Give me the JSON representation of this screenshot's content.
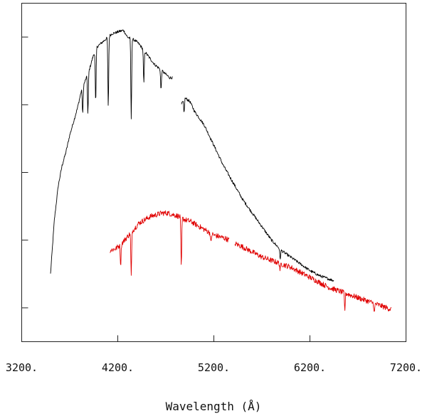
{
  "chart_data": {
    "type": "line",
    "title": "",
    "xlabel": "Wavelength (Å)",
    "ylabel": "",
    "xlim": [
      3200,
      7200
    ],
    "ylim": [
      0,
      1
    ],
    "x_ticks": [
      3200,
      4200,
      5200,
      6200,
      7200
    ],
    "x_tick_labels": [
      "3200.",
      "4200.",
      "5200.",
      "6200.",
      "7200."
    ],
    "y_ticks": [
      0.1,
      0.3,
      0.5,
      0.7,
      0.9
    ],
    "grid": false,
    "legend": "none",
    "series": [
      {
        "color": "#000000",
        "segments": [
          {
            "x": [
              3500,
              3540,
              3580,
              3620,
              3660,
              3700,
              3740,
              3780,
              3820,
              3860,
              3900,
              3940,
              3980,
              4020,
              4060,
              4100,
              4140,
              4180,
              4220,
              4260,
              4300,
              4340,
              4380,
              4420,
              4460,
              4500,
              4540,
              4580,
              4620,
              4660,
              4700,
              4740,
              4770
            ],
            "y": [
              0.2,
              0.36,
              0.46,
              0.52,
              0.56,
              0.61,
              0.65,
              0.69,
              0.74,
              0.77,
              0.8,
              0.84,
              0.87,
              0.88,
              0.89,
              0.9,
              0.91,
              0.913,
              0.917,
              0.92,
              0.9,
              0.895,
              0.89,
              0.88,
              0.865,
              0.85,
              0.835,
              0.82,
              0.81,
              0.8,
              0.79,
              0.78,
              0.78
            ],
            "dips": [
              {
                "x": 3835,
                "depth": 0.08
              },
              {
                "x": 3889,
                "depth": 0.12
              },
              {
                "x": 3970,
                "depth": 0.16
              },
              {
                "x": 4101,
                "depth": 0.21
              },
              {
                "x": 4340,
                "depth": 0.24
              },
              {
                "x": 4471,
                "depth": 0.1
              },
              {
                "x": 4650,
                "depth": 0.06
              }
            ]
          },
          {
            "x": [
              4860,
              4900,
              4950,
              5000,
              5100,
              5200,
              5300,
              5400,
              5500,
              5600,
              5700,
              5800,
              5900,
              6000,
              6100,
              6200,
              6300,
              6400,
              6450
            ],
            "y": [
              0.7,
              0.72,
              0.71,
              0.68,
              0.64,
              0.58,
              0.52,
              0.47,
              0.42,
              0.38,
              0.34,
              0.3,
              0.27,
              0.25,
              0.23,
              0.21,
              0.195,
              0.185,
              0.18
            ],
            "dips": [
              {
                "x": 4890,
                "depth": 0.04
              },
              {
                "x": 5890,
                "depth": 0.03
              }
            ]
          }
        ]
      },
      {
        "color": "#e00000",
        "segments": [
          {
            "x": [
              4120,
              4180,
              4240,
              4300,
              4360,
              4420,
              4480,
              4540,
              4600,
              4660,
              4720,
              4780,
              4840,
              4900,
              4960,
              5020,
              5080,
              5140,
              5200,
              5260,
              5320,
              5360
            ],
            "y": [
              0.27,
              0.275,
              0.29,
              0.31,
              0.33,
              0.35,
              0.36,
              0.37,
              0.375,
              0.38,
              0.38,
              0.375,
              0.37,
              0.36,
              0.355,
              0.345,
              0.335,
              0.325,
              0.315,
              0.31,
              0.305,
              0.3
            ],
            "dips": [
              {
                "x": 4230,
                "depth": 0.06
              },
              {
                "x": 4340,
                "depth": 0.13
              },
              {
                "x": 4861,
                "depth": 0.15
              },
              {
                "x": 5170,
                "depth": 0.03
              }
            ]
          },
          {
            "x": [
              5420,
              5500,
              5600,
              5700,
              5800,
              5900,
              6000,
              6100,
              6200,
              6300,
              6400,
              6500,
              6600,
              6700,
              6800,
              6900,
              7000,
              7050
            ],
            "y": [
              0.29,
              0.28,
              0.265,
              0.25,
              0.24,
              0.23,
              0.22,
              0.205,
              0.19,
              0.175,
              0.16,
              0.15,
              0.14,
              0.13,
              0.12,
              0.11,
              0.1,
              0.095
            ],
            "dips": [
              {
                "x": 5890,
                "depth": 0.02
              },
              {
                "x": 6563,
                "depth": 0.05
              },
              {
                "x": 6870,
                "depth": 0.03
              }
            ]
          }
        ]
      }
    ]
  }
}
